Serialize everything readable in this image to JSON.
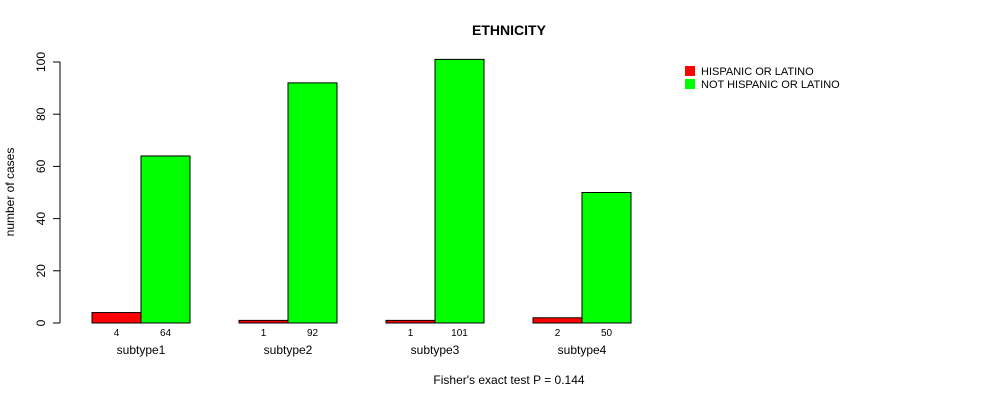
{
  "chart_data": {
    "type": "bar",
    "title": "ETHNICITY",
    "xlabel": "",
    "ylabel": "number of cases",
    "ylim": [
      0,
      100
    ],
    "yticks": [
      0,
      20,
      40,
      60,
      80,
      100
    ],
    "categories": [
      "subtype1",
      "subtype2",
      "subtype3",
      "subtype4"
    ],
    "series": [
      {
        "name": "HISPANIC OR LATINO",
        "color": "#ff0000",
        "values": [
          4,
          1,
          1,
          2
        ]
      },
      {
        "name": "NOT HISPANIC OR LATINO",
        "color": "#00ff00",
        "values": [
          64,
          92,
          101,
          50
        ]
      }
    ],
    "legend": {
      "placement": "top-right"
    },
    "grid": false,
    "footnote": "Fisher's exact test P = 0.144"
  }
}
